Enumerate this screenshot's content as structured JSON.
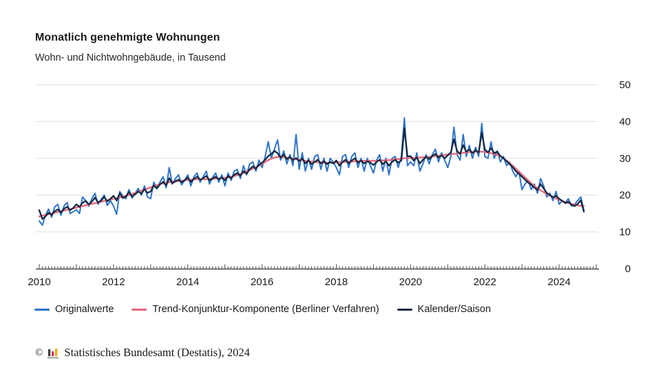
{
  "header": {
    "title": "Monatlich genehmigte Wohnungen",
    "subtitle": "Wohn- und Nichtwohngebäude, in Tausend"
  },
  "legend": {
    "items": [
      {
        "label": "Originalwerte",
        "color": "#2f73c7"
      },
      {
        "label": "Trend-Konjunktur-Komponente (Berliner Verfahren)",
        "color": "#e56779"
      },
      {
        "label": "Kalender/Saison",
        "color": "#122943"
      }
    ]
  },
  "footer": {
    "copyright": "©",
    "logo_icon": "destatis-bar-chart-icon",
    "text": "Statistisches Bundesamt (Destatis), 2024"
  },
  "colors": {
    "grid": "#e0e0e0",
    "axis": "#4d4d4d",
    "text": "#1a1a1a",
    "logo_bar_dark": "#3c3c3b",
    "logo_bar_red": "#d23264",
    "logo_bar_yellow": "#f0aa00",
    "logo_base_gray": "#b0b0b0"
  },
  "chart_data": {
    "type": "line",
    "title": "Monatlich genehmigte Wohnungen",
    "subtitle": "Wohn- und Nichtwohngebäude, in Tausend",
    "xlabel": "",
    "ylabel": "in Tausend",
    "x_unit": "month",
    "x_start": "2010-01",
    "x_end": "2024-09",
    "x_tick_years": [
      2010,
      2012,
      2014,
      2016,
      2018,
      2020,
      2022,
      2024
    ],
    "x_tick_labels": [
      "2010",
      "2012",
      "2014",
      "2016",
      "2018",
      "2020",
      "2022",
      "2024"
    ],
    "ylim": [
      0,
      50
    ],
    "y_ticks": [
      0,
      10,
      20,
      30,
      40,
      50
    ],
    "grid": true,
    "legend_position": "bottom",
    "series": [
      {
        "name": "Originalwerte",
        "color": "#2f73c7",
        "values": [
          13.0,
          11.8,
          14.5,
          16.2,
          14.0,
          16.8,
          17.5,
          14.5,
          17.0,
          18.0,
          15.0,
          15.5,
          16.0,
          15.0,
          19.5,
          18.5,
          17.0,
          19.0,
          20.5,
          17.5,
          18.8,
          20.0,
          17.2,
          18.5,
          17.0,
          14.8,
          21.0,
          19.8,
          19.0,
          21.5,
          19.2,
          20.5,
          21.8,
          20.0,
          22.5,
          19.5,
          19.0,
          23.5,
          22.0,
          23.5,
          25.0,
          22.0,
          27.5,
          23.0,
          24.5,
          25.5,
          22.8,
          24.0,
          25.5,
          22.5,
          25.0,
          26.0,
          23.5,
          25.0,
          26.5,
          23.0,
          24.8,
          26.0,
          23.5,
          25.5,
          22.5,
          26.0,
          24.0,
          26.5,
          27.0,
          24.5,
          28.0,
          25.5,
          28.5,
          29.0,
          26.5,
          29.5,
          27.5,
          30.5,
          34.5,
          30.0,
          32.5,
          35.0,
          29.5,
          32.0,
          28.5,
          31.0,
          28.0,
          36.5,
          27.0,
          31.5,
          26.5,
          30.0,
          27.0,
          30.5,
          31.0,
          27.0,
          30.0,
          26.5,
          30.0,
          29.0,
          27.5,
          25.5,
          30.5,
          31.0,
          27.5,
          30.5,
          31.5,
          27.5,
          30.0,
          26.5,
          30.0,
          28.0,
          26.0,
          29.5,
          31.0,
          26.5,
          30.0,
          25.5,
          30.0,
          30.5,
          27.5,
          30.5,
          41.0,
          28.0,
          29.0,
          28.0,
          31.5,
          26.5,
          28.5,
          31.0,
          28.5,
          31.0,
          32.5,
          29.0,
          31.5,
          29.5,
          27.5,
          30.5,
          38.5,
          31.0,
          29.5,
          36.5,
          30.5,
          33.5,
          30.0,
          33.0,
          30.5,
          39.5,
          30.5,
          30.0,
          34.5,
          30.0,
          32.0,
          29.0,
          30.5,
          28.0,
          29.0,
          26.5,
          25.0,
          26.5,
          21.5,
          23.0,
          24.0,
          21.5,
          23.0,
          20.5,
          24.5,
          22.5,
          19.5,
          20.5,
          18.5,
          21.0,
          17.5,
          18.5,
          18.0,
          19.0,
          17.0,
          17.5,
          18.5,
          19.5,
          15.9
        ]
      },
      {
        "name": "Trend-Konjunktur-Komponente (Berliner Verfahren)",
        "color": "#e56779",
        "values": [
          14.2,
          14.4,
          14.6,
          14.8,
          15.0,
          15.2,
          15.4,
          15.6,
          15.8,
          16.0,
          16.2,
          16.4,
          16.6,
          16.8,
          17.0,
          17.2,
          17.4,
          17.6,
          17.8,
          18.0,
          18.2,
          18.4,
          18.6,
          18.8,
          19.0,
          19.2,
          19.4,
          19.6,
          19.8,
          20.0,
          20.3,
          20.6,
          20.9,
          21.2,
          21.5,
          21.8,
          22.1,
          22.4,
          22.7,
          23.0,
          23.2,
          23.4,
          23.5,
          23.6,
          23.7,
          23.8,
          23.9,
          24.0,
          24.1,
          24.2,
          24.3,
          24.3,
          24.3,
          24.3,
          24.3,
          24.4,
          24.4,
          24.5,
          24.5,
          24.6,
          24.7,
          24.8,
          25.0,
          25.2,
          25.4,
          25.7,
          26.0,
          26.4,
          26.8,
          27.2,
          27.6,
          28.0,
          28.5,
          29.0,
          29.5,
          29.9,
          30.2,
          30.4,
          30.4,
          30.3,
          30.2,
          30.0,
          29.9,
          29.8,
          29.6,
          29.5,
          29.3,
          29.2,
          29.1,
          29.0,
          28.9,
          28.9,
          28.8,
          28.8,
          28.8,
          28.8,
          28.9,
          28.9,
          29.0,
          29.0,
          29.1,
          29.1,
          29.2,
          29.2,
          29.3,
          29.3,
          29.3,
          29.3,
          29.3,
          29.3,
          29.4,
          29.4,
          29.5,
          29.5,
          29.6,
          29.7,
          29.8,
          29.9,
          30.0,
          30.0,
          30.1,
          30.1,
          30.2,
          30.2,
          30.3,
          30.3,
          30.4,
          30.5,
          30.6,
          30.7,
          30.8,
          30.9,
          31.0,
          31.1,
          31.2,
          31.3,
          31.4,
          31.5,
          31.6,
          31.7,
          31.7,
          31.8,
          31.8,
          31.8,
          31.7,
          31.6,
          31.4,
          31.2,
          30.9,
          30.5,
          30.0,
          29.4,
          28.7,
          28.0,
          27.2,
          26.4,
          25.6,
          24.8,
          24.0,
          23.2,
          22.5,
          21.9,
          21.3,
          20.8,
          20.3,
          19.9,
          19.5,
          19.1,
          18.7,
          18.4,
          18.1,
          17.8,
          17.6,
          17.4,
          17.2,
          17.1,
          17.0
        ]
      },
      {
        "name": "Kalender/Saison",
        "color": "#122943",
        "values": [
          15.9,
          13.5,
          14.2,
          15.2,
          14.6,
          15.6,
          16.1,
          15.3,
          16.3,
          16.8,
          15.9,
          16.5,
          17.5,
          16.8,
          17.9,
          18.4,
          17.5,
          18.2,
          19.3,
          18.0,
          18.5,
          19.5,
          18.3,
          19.0,
          19.8,
          18.5,
          20.5,
          19.2,
          19.6,
          20.8,
          19.6,
          20.2,
          21.0,
          20.4,
          21.6,
          20.6,
          21.0,
          22.6,
          21.8,
          22.9,
          23.6,
          22.6,
          24.6,
          23.2,
          23.8,
          24.2,
          23.5,
          24.0,
          24.8,
          23.6,
          24.4,
          25.0,
          24.2,
          24.6,
          25.2,
          24.0,
          24.5,
          25.0,
          24.3,
          24.8,
          24.0,
          25.2,
          24.6,
          25.5,
          26.0,
          25.3,
          26.5,
          25.8,
          27.0,
          27.8,
          27.2,
          28.2,
          28.8,
          29.6,
          30.6,
          31.2,
          32.0,
          31.4,
          30.2,
          31.0,
          29.8,
          30.4,
          29.5,
          30.1,
          29.2,
          30.0,
          28.6,
          29.4,
          28.4,
          29.0,
          29.6,
          28.6,
          29.2,
          28.4,
          29.0,
          28.6,
          29.4,
          28.0,
          29.0,
          29.6,
          28.6,
          29.4,
          30.0,
          28.8,
          29.4,
          28.6,
          29.2,
          28.8,
          28.2,
          29.0,
          29.6,
          28.4,
          29.2,
          28.0,
          29.0,
          29.6,
          28.8,
          29.4,
          38.2,
          30.5,
          30.6,
          29.4,
          30.2,
          28.6,
          29.6,
          30.4,
          29.8,
          30.6,
          31.2,
          30.2,
          30.8,
          30.0,
          30.8,
          31.6,
          35.2,
          32.0,
          31.2,
          33.6,
          31.8,
          32.4,
          31.4,
          32.2,
          31.6,
          37.0,
          32.4,
          31.6,
          32.8,
          31.4,
          31.8,
          30.6,
          30.0,
          29.2,
          28.4,
          27.6,
          26.5,
          25.8,
          25.0,
          24.2,
          23.4,
          22.8,
          22.0,
          21.4,
          23.0,
          21.8,
          20.6,
          20.0,
          19.4,
          19.8,
          19.0,
          18.4,
          17.8,
          18.2,
          17.4,
          17.0,
          17.6,
          18.6,
          15.5
        ]
      }
    ]
  }
}
